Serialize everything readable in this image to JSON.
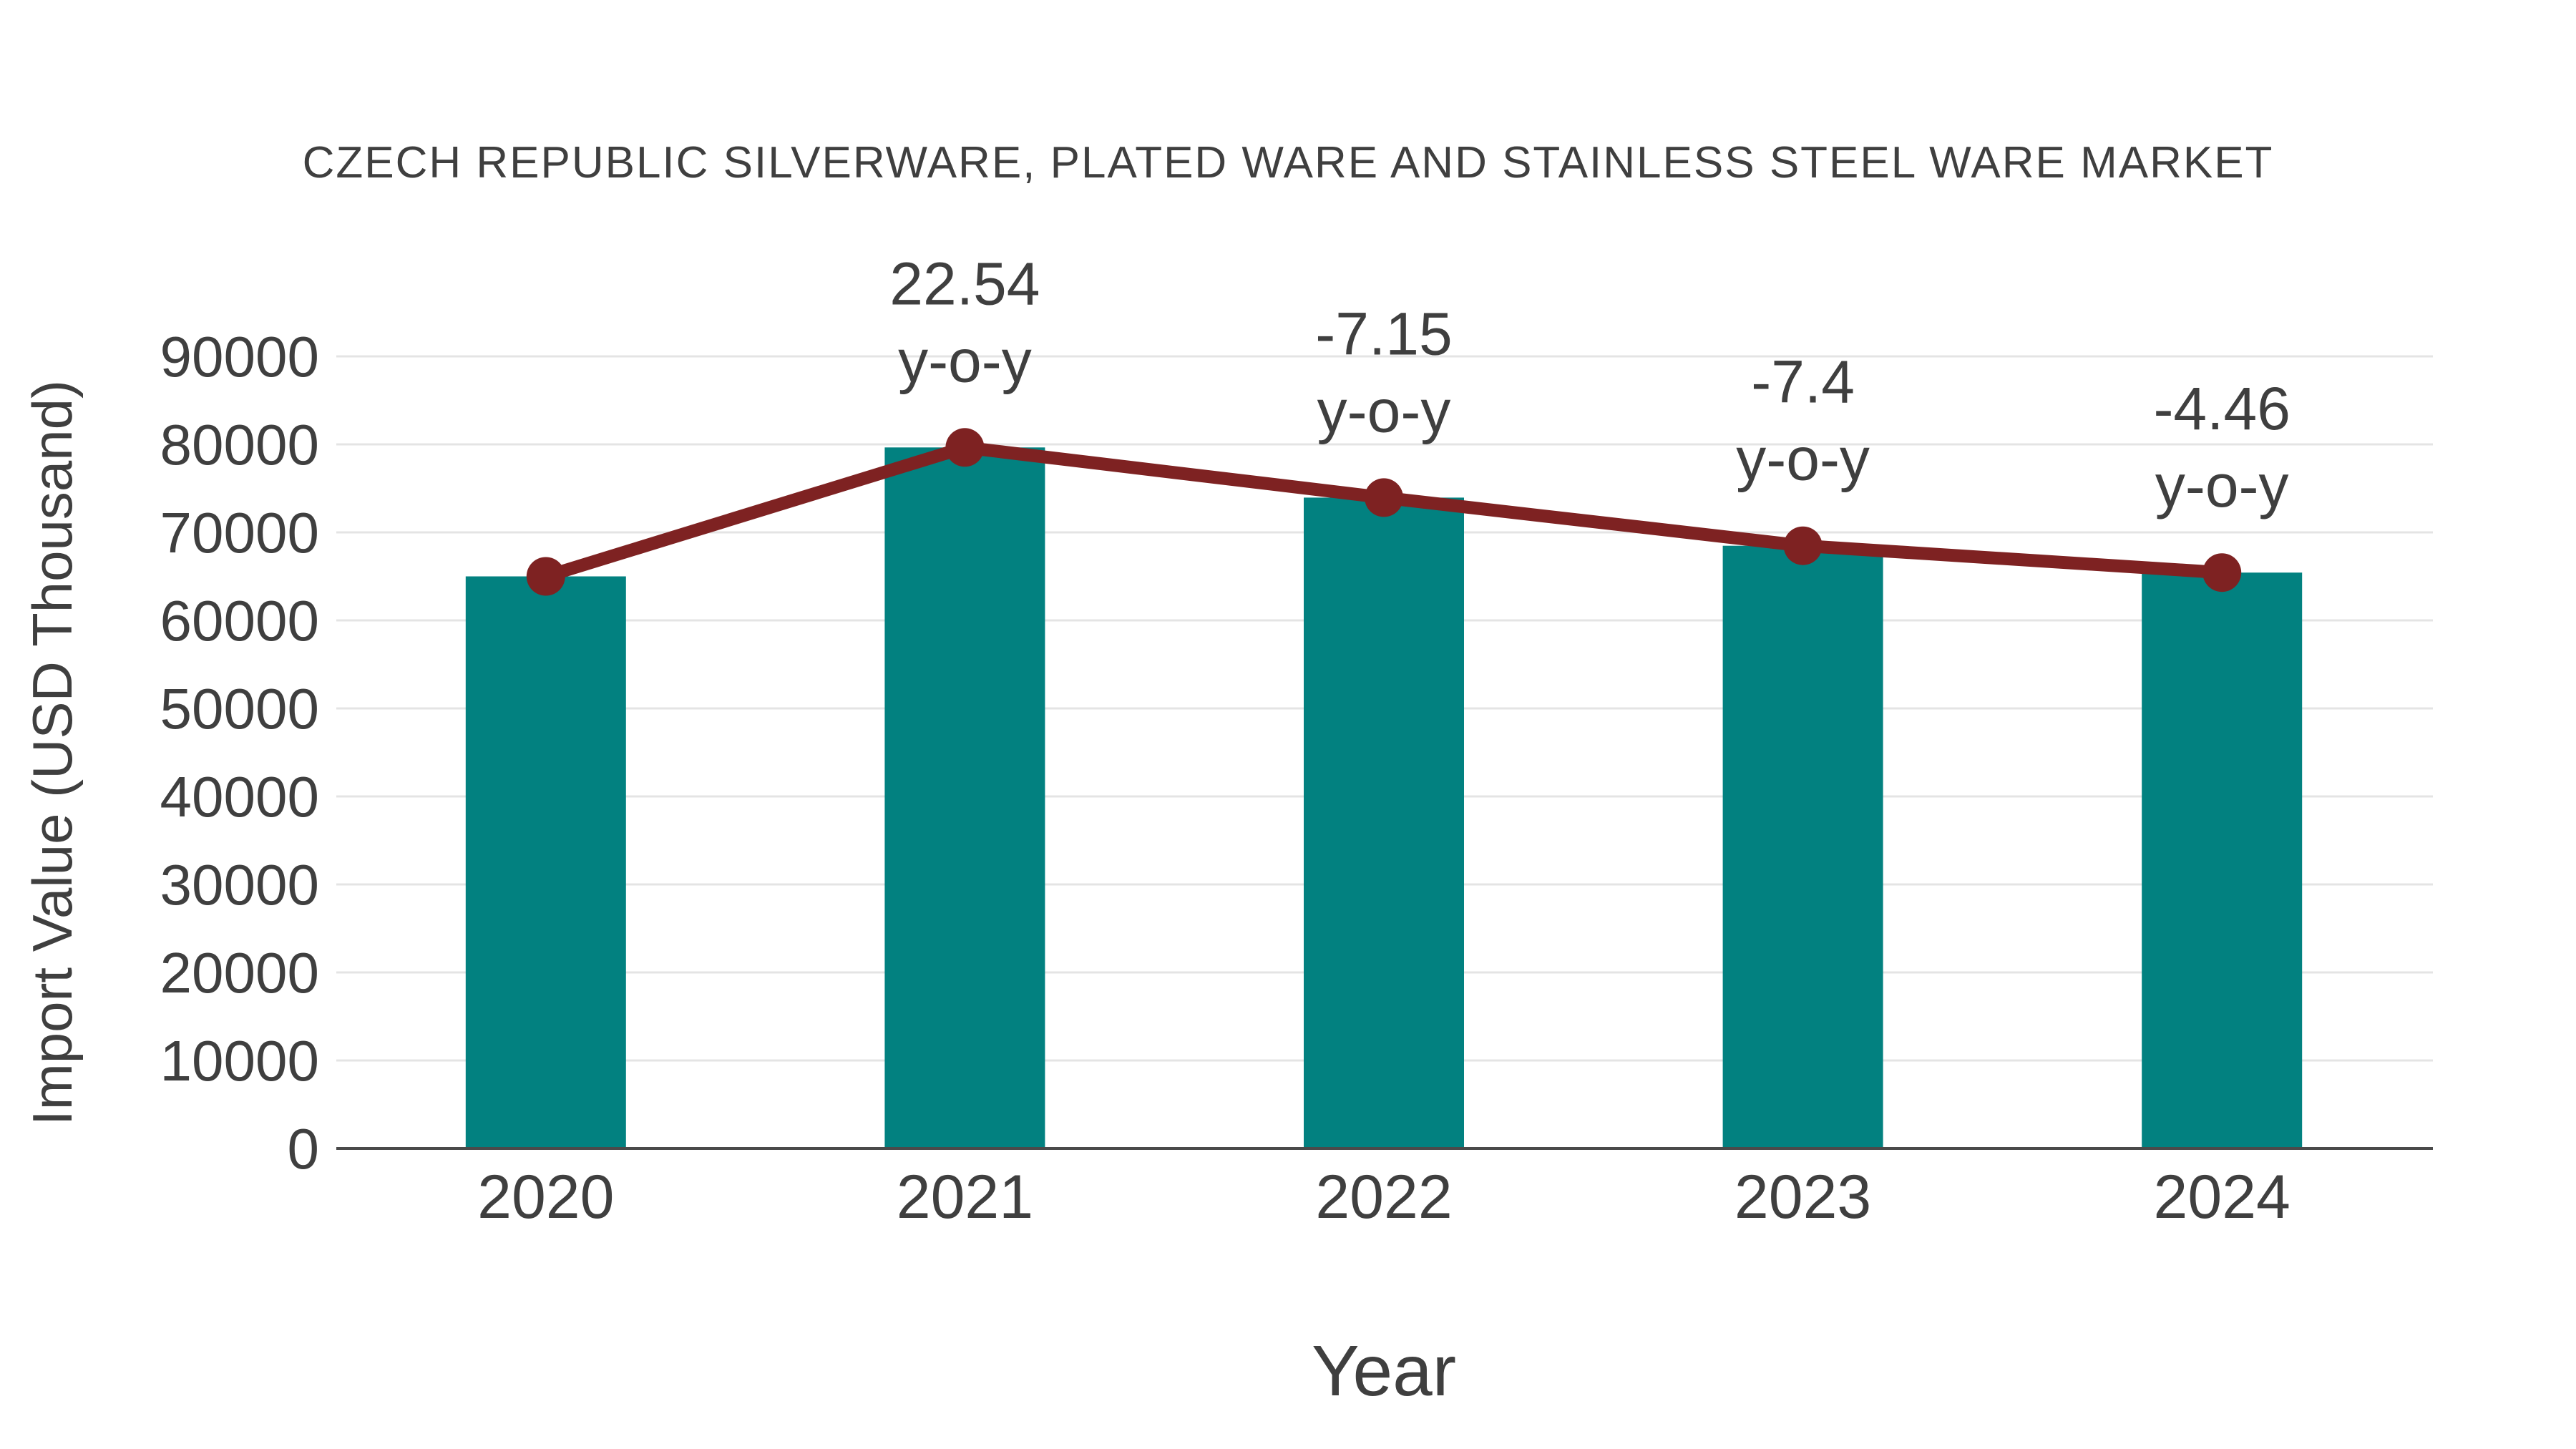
{
  "chart": {
    "title": "CZECH REPUBLIC SILVERWARE, PLATED WARE AND STAINLESS STEEL WARE MARKET",
    "xlabel": "Year",
    "ylabel": "Import Value (USD Thousand)"
  },
  "chart_data": {
    "type": "bar",
    "title": "CZECH REPUBLIC SILVERWARE, PLATED WARE AND STAINLESS STEEL WARE MARKET",
    "xlabel": "Year",
    "ylabel": "Import Value (USD Thousand)",
    "categories": [
      "2020",
      "2021",
      "2022",
      "2023",
      "2024"
    ],
    "series": [
      {
        "name": "Import Value bars",
        "type": "bar",
        "color": "#028180",
        "values": [
          65000,
          79650,
          73950,
          68480,
          65430
        ]
      },
      {
        "name": "Import Value trend line",
        "type": "line",
        "color": "#7E2222",
        "values": [
          65000,
          79650,
          73950,
          68480,
          65430
        ]
      }
    ],
    "annotations": [
      {
        "category": "2021",
        "value_label": "22.54",
        "suffix_label": "y-o-y"
      },
      {
        "category": "2022",
        "value_label": "-7.15",
        "suffix_label": "y-o-y"
      },
      {
        "category": "2023",
        "value_label": "-7.4",
        "suffix_label": "y-o-y"
      },
      {
        "category": "2024",
        "value_label": "-4.46",
        "suffix_label": "y-o-y"
      }
    ],
    "yticks": [
      0,
      10000,
      20000,
      30000,
      40000,
      50000,
      60000,
      70000,
      80000,
      90000
    ],
    "ylim": [
      0,
      97000
    ],
    "grid": true,
    "legend_position": "none"
  },
  "style": {
    "bar_color": "#028180",
    "line_color": "#7E2222",
    "marker_color": "#7E2222",
    "text_color": "#3F3F3F",
    "grid_color": "#E4E4E4",
    "axis_color": "#4A4A4A",
    "background": "#FFFFFF"
  }
}
